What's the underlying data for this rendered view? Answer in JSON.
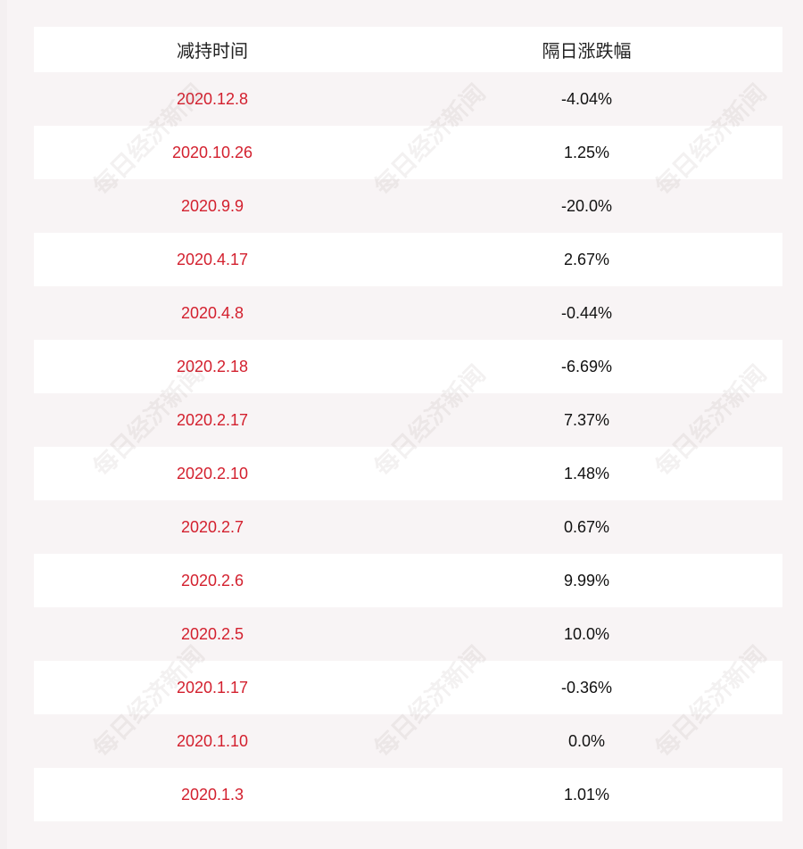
{
  "table": {
    "header": [
      "减持时间",
      "隔日涨跌幅"
    ],
    "rows": [
      [
        "2020.12.8",
        "-4.04%"
      ],
      [
        "2020.10.26",
        "1.25%"
      ],
      [
        "2020.9.9",
        "-20.0%"
      ],
      [
        "2020.4.17",
        "2.67%"
      ],
      [
        "2020.4.8",
        "-0.44%"
      ],
      [
        "2020.2.18",
        "-6.69%"
      ],
      [
        "2020.2.17",
        "7.37%"
      ],
      [
        "2020.2.10",
        "1.48%"
      ],
      [
        "2020.2.7",
        "0.67%"
      ],
      [
        "2020.2.6",
        "9.99%"
      ],
      [
        "2020.2.5",
        "10.0%"
      ],
      [
        "2020.1.17",
        "-0.36%"
      ],
      [
        "2020.1.10",
        "0.0%"
      ],
      [
        "2020.1.3",
        "1.01%"
      ]
    ]
  },
  "watermark": "每日经济新闻"
}
